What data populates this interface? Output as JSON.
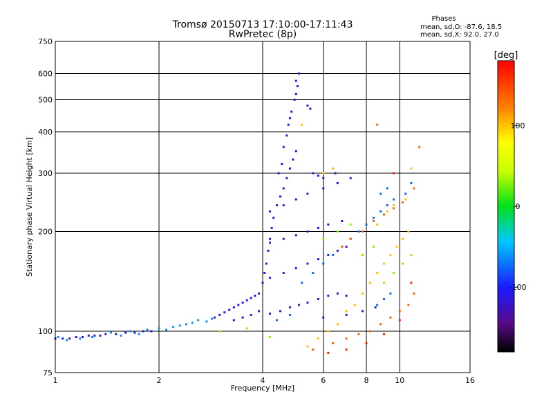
{
  "chart_data": {
    "type": "scatter",
    "title": "Tromsø 20150713 17:10:00-17:11:43",
    "subtitle": "RwPretec (8p)",
    "xlabel": "Frequency [MHz]",
    "ylabel": "Stationary phase Virtual Height [km]",
    "x_scale": "log",
    "y_scale": "log",
    "xlim": [
      1,
      16
    ],
    "ylim": [
      75,
      750
    ],
    "x_ticks": [
      1,
      2,
      4,
      6,
      8,
      10,
      16
    ],
    "y_ticks": [
      75,
      100,
      200,
      300,
      400,
      500,
      600,
      750
    ],
    "grid": true,
    "stats": {
      "heading": "Phases",
      "line_o": "mean, sd,O: -87.6, 18.5",
      "line_x": "mean, sd,X:  92.0, 27.0"
    },
    "colorbar": {
      "label": "[deg]",
      "range": [
        -180,
        180
      ],
      "ticks": [
        100,
        0,
        -100
      ],
      "tick_labels": [
        "100",
        "0",
        "-100"
      ]
    },
    "series": [
      {
        "phase": -110,
        "points": [
          [
            1.0,
            95
          ],
          [
            1.05,
            95
          ],
          [
            1.1,
            95
          ],
          [
            1.15,
            96
          ],
          [
            1.2,
            96
          ],
          [
            1.25,
            97
          ],
          [
            1.3,
            97
          ],
          [
            1.35,
            97
          ],
          [
            1.4,
            98
          ],
          [
            1.5,
            98
          ],
          [
            1.6,
            99
          ],
          [
            1.7,
            99
          ],
          [
            1.8,
            100
          ],
          [
            1.9,
            100
          ]
        ]
      },
      {
        "phase": -60,
        "points": [
          [
            1.02,
            96
          ],
          [
            1.08,
            94
          ],
          [
            1.18,
            95
          ],
          [
            1.28,
            96
          ],
          [
            1.45,
            99
          ],
          [
            1.55,
            97
          ],
          [
            1.65,
            100
          ],
          [
            1.75,
            98
          ],
          [
            1.85,
            101
          ],
          [
            2.0,
            102
          ],
          [
            2.1,
            101
          ],
          [
            2.2,
            103
          ],
          [
            2.3,
            104
          ],
          [
            2.4,
            105
          ],
          [
            2.5,
            106
          ],
          [
            2.6,
            108
          ],
          [
            2.75,
            107
          ],
          [
            2.85,
            109
          ]
        ]
      },
      {
        "phase": -110,
        "points": [
          [
            2.9,
            110
          ],
          [
            3.0,
            112
          ],
          [
            3.1,
            114
          ],
          [
            3.2,
            116
          ],
          [
            3.3,
            118
          ],
          [
            3.4,
            120
          ],
          [
            3.5,
            122
          ],
          [
            3.6,
            124
          ],
          [
            3.7,
            126
          ],
          [
            3.8,
            128
          ],
          [
            3.9,
            130
          ],
          [
            4.0,
            140
          ],
          [
            4.05,
            150
          ],
          [
            4.1,
            160
          ],
          [
            4.15,
            175
          ],
          [
            4.2,
            190
          ],
          [
            4.25,
            205
          ],
          [
            4.3,
            220
          ],
          [
            4.4,
            240
          ],
          [
            4.5,
            255
          ],
          [
            4.6,
            270
          ],
          [
            4.7,
            290
          ],
          [
            4.8,
            310
          ],
          [
            4.9,
            330
          ],
          [
            5.0,
            350
          ],
          [
            4.45,
            300
          ],
          [
            4.55,
            320
          ],
          [
            4.6,
            360
          ],
          [
            4.7,
            390
          ],
          [
            4.75,
            420
          ],
          [
            4.8,
            440
          ],
          [
            4.85,
            460
          ],
          [
            4.95,
            500
          ],
          [
            5.0,
            520
          ],
          [
            5.05,
            550
          ],
          [
            5.1,
            600
          ],
          [
            5.0,
            570
          ],
          [
            5.4,
            480
          ],
          [
            5.5,
            470
          ],
          [
            5.6,
            300
          ],
          [
            5.8,
            295
          ],
          [
            6.0,
            290
          ],
          [
            6.5,
            300
          ]
        ]
      },
      {
        "phase": -115,
        "points": [
          [
            3.3,
            108
          ],
          [
            3.5,
            110
          ],
          [
            3.7,
            112
          ],
          [
            3.9,
            115
          ],
          [
            4.2,
            113
          ],
          [
            4.5,
            115
          ],
          [
            4.8,
            118
          ],
          [
            5.1,
            120
          ],
          [
            5.4,
            122
          ],
          [
            5.8,
            125
          ],
          [
            6.2,
            128
          ],
          [
            6.6,
            130
          ],
          [
            7.0,
            128
          ],
          [
            4.2,
            145
          ],
          [
            4.6,
            150
          ],
          [
            5.0,
            155
          ],
          [
            5.4,
            160
          ],
          [
            5.8,
            165
          ],
          [
            6.2,
            170
          ],
          [
            6.6,
            175
          ],
          [
            7.0,
            180
          ],
          [
            4.2,
            185
          ],
          [
            4.6,
            190
          ],
          [
            5.0,
            195
          ],
          [
            5.4,
            200
          ],
          [
            5.8,
            205
          ],
          [
            6.2,
            210
          ],
          [
            6.8,
            215
          ],
          [
            4.2,
            230
          ],
          [
            4.6,
            240
          ],
          [
            5.0,
            250
          ],
          [
            5.4,
            260
          ],
          [
            6.0,
            270
          ],
          [
            6.6,
            280
          ],
          [
            7.2,
            290
          ],
          [
            6.0,
            110
          ],
          [
            7.0,
            112
          ],
          [
            7.8,
            115
          ],
          [
            8.5,
            118
          ]
        ]
      },
      {
        "phase": -75,
        "points": [
          [
            4.4,
            108
          ],
          [
            4.8,
            112
          ],
          [
            5.2,
            140
          ],
          [
            5.6,
            150
          ],
          [
            6.0,
            160
          ],
          [
            6.4,
            170
          ],
          [
            6.8,
            180
          ],
          [
            7.2,
            190
          ],
          [
            7.6,
            200
          ],
          [
            8.0,
            210
          ],
          [
            8.4,
            220
          ],
          [
            8.8,
            230
          ],
          [
            9.2,
            240
          ],
          [
            9.6,
            250
          ],
          [
            10.4,
            260
          ],
          [
            10.8,
            280
          ],
          [
            8.6,
            120
          ],
          [
            9.0,
            125
          ],
          [
            9.4,
            130
          ],
          [
            8.8,
            260
          ],
          [
            9.2,
            270
          ]
        ]
      },
      {
        "phase": 100,
        "points": [
          [
            5.4,
            90
          ],
          [
            5.8,
            95
          ],
          [
            6.2,
            100
          ],
          [
            6.6,
            105
          ],
          [
            7.0,
            115
          ],
          [
            7.4,
            120
          ],
          [
            7.8,
            130
          ],
          [
            8.2,
            140
          ],
          [
            8.6,
            150
          ],
          [
            9.0,
            160
          ],
          [
            9.4,
            170
          ],
          [
            9.8,
            180
          ],
          [
            10.2,
            190
          ],
          [
            10.6,
            200
          ],
          [
            6.0,
            300
          ],
          [
            6.4,
            310
          ],
          [
            8.6,
            210
          ],
          [
            9.2,
            230
          ],
          [
            9.6,
            240
          ],
          [
            10.4,
            250
          ],
          [
            10.8,
            310
          ],
          [
            5.2,
            420
          ]
        ]
      },
      {
        "phase": 135,
        "points": [
          [
            5.6,
            88
          ],
          [
            6.4,
            92
          ],
          [
            7.0,
            95
          ],
          [
            7.6,
            98
          ],
          [
            8.2,
            100
          ],
          [
            8.8,
            105
          ],
          [
            9.4,
            110
          ],
          [
            10.0,
            115
          ],
          [
            10.6,
            120
          ],
          [
            11.0,
            130
          ],
          [
            6.8,
            180
          ],
          [
            7.2,
            190
          ],
          [
            7.8,
            200
          ],
          [
            8.4,
            215
          ],
          [
            9.0,
            225
          ],
          [
            9.6,
            235
          ],
          [
            10.2,
            245
          ],
          [
            11.0,
            270
          ],
          [
            11.4,
            360
          ],
          [
            8.6,
            420
          ]
        ]
      },
      {
        "phase": 30,
        "points": [
          [
            3.0,
            100
          ],
          [
            3.6,
            102
          ],
          [
            4.2,
            96
          ],
          [
            6.0,
            190
          ],
          [
            6.6,
            200
          ],
          [
            7.2,
            210
          ],
          [
            7.8,
            170
          ],
          [
            8.4,
            180
          ],
          [
            9.0,
            140
          ],
          [
            9.6,
            150
          ],
          [
            10.2,
            160
          ],
          [
            10.8,
            170
          ]
        ]
      },
      {
        "phase": 165,
        "points": [
          [
            6.2,
            86
          ],
          [
            7.0,
            88
          ],
          [
            8.0,
            92
          ],
          [
            9.0,
            98
          ],
          [
            10.0,
            108
          ],
          [
            10.8,
            140
          ],
          [
            9.6,
            300
          ]
        ]
      }
    ]
  }
}
